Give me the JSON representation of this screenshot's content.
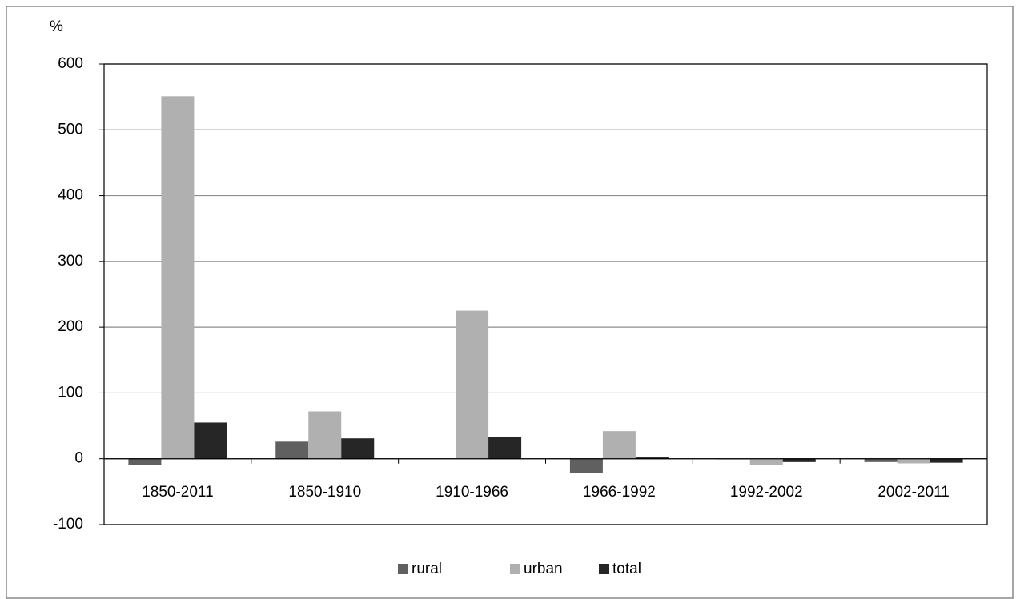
{
  "chart_data": {
    "type": "bar",
    "y_label": "%",
    "categories": [
      "1850-2011",
      "1850-1910",
      "1910-1966",
      "1966-1992",
      "1992-2002",
      "2002-2011"
    ],
    "series": [
      {
        "name": "rural",
        "color": "#606060",
        "values": [
          -9,
          26,
          0,
          -22,
          -1,
          -5
        ]
      },
      {
        "name": "urban",
        "color": "#b0b0b0",
        "values": [
          551,
          72,
          225,
          42,
          -9,
          -7
        ]
      },
      {
        "name": "total",
        "color": "#262626",
        "values": [
          55,
          31,
          33,
          2,
          -5,
          -6
        ]
      }
    ],
    "ylim": [
      -100,
      600
    ],
    "yticks": [
      -100,
      0,
      100,
      200,
      300,
      400,
      500,
      600
    ],
    "grid": true,
    "legend": "bottom"
  }
}
